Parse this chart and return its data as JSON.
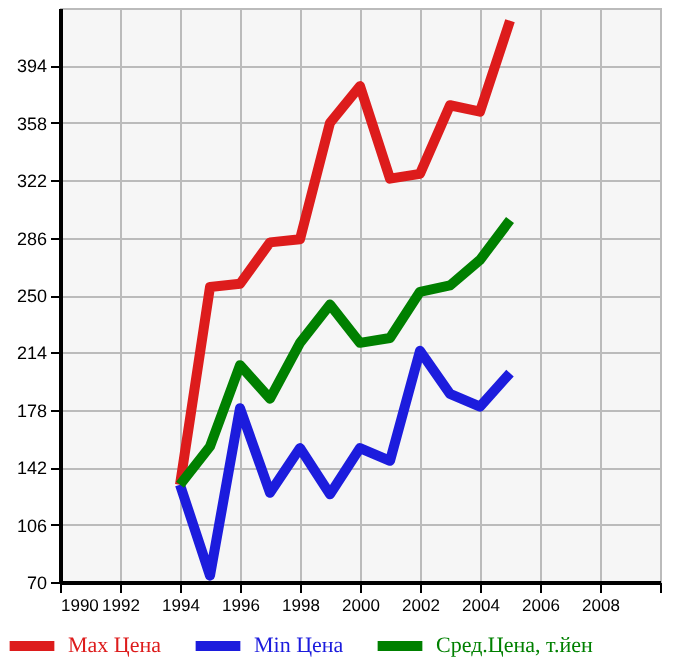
{
  "chart_data": {
    "type": "line",
    "x": [
      1994,
      1995,
      1996,
      1997,
      1998,
      1999,
      2000,
      2001,
      2002,
      2003,
      2004,
      2005
    ],
    "series": [
      {
        "name": "Max Цена",
        "color": "#dd1c1c",
        "values": [
          131,
          255,
          257,
          283,
          285,
          358,
          381,
          323,
          326,
          369,
          365,
          422
        ]
      },
      {
        "name": "Min Цена",
        "color": "#1c1cdd",
        "values": [
          131,
          74,
          179,
          126,
          154,
          125,
          154,
          146,
          215,
          188,
          180,
          201
        ]
      },
      {
        "name": "Сред.Цена, т.йен",
        "color": "#008000",
        "values": [
          131,
          155,
          206,
          185,
          220,
          244,
          220,
          223,
          252,
          256,
          272,
          297
        ]
      }
    ],
    "xlim": [
      1990,
      2010
    ],
    "xticks": [
      1990,
      1992,
      1994,
      1996,
      1998,
      2000,
      2002,
      2004,
      2006,
      2008,
      {
        "value": 2010,
        "label": null
      }
    ],
    "ylim": [
      70,
      430
    ],
    "yticks": [
      70,
      106,
      142,
      178,
      214,
      250,
      286,
      322,
      358,
      394
    ],
    "grid": true,
    "legend": "bottom",
    "marker": "none",
    "line_style": "solid"
  }
}
